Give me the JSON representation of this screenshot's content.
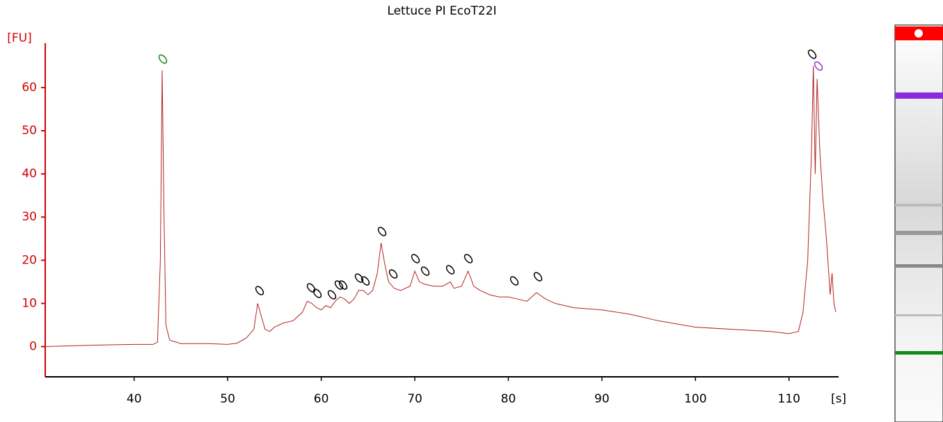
{
  "chart_data": {
    "type": "line",
    "title": "Lettuce PI EcoT22I",
    "y_label": "[FU]",
    "x_label": "[s]",
    "color": "#b22222",
    "axis_color": "#d40000",
    "xlim": [
      30.5,
      115.3
    ],
    "ylim": [
      -7,
      70.3
    ],
    "xticks": [
      40,
      50,
      60,
      70,
      80,
      90,
      100,
      110
    ],
    "yticks": [
      0,
      10,
      20,
      30,
      40,
      50,
      60
    ],
    "x": [
      30.5,
      35,
      40,
      42,
      42.5,
      42.8,
      43.0,
      43.2,
      43.4,
      43.8,
      45,
      48,
      50,
      51,
      52,
      52.8,
      53.2,
      53.6,
      54,
      54.5,
      55,
      56,
      57,
      58,
      58.5,
      59,
      59.5,
      60,
      60.5,
      61,
      61.5,
      62,
      62.5,
      63,
      63.5,
      64,
      64.5,
      65,
      65.5,
      66,
      66.4,
      66.8,
      67.2,
      67.8,
      68.5,
      69.5,
      70,
      70.5,
      71,
      72,
      73,
      73.8,
      74.2,
      75,
      75.7,
      76.3,
      77,
      78,
      79,
      80,
      81,
      82,
      83,
      84,
      85,
      87,
      90,
      93,
      96,
      100,
      104,
      108,
      110,
      111,
      111.5,
      112,
      112.4,
      112.6,
      112.8,
      113,
      113.3,
      113.6,
      114,
      114.4,
      114.6,
      114.8,
      115
    ],
    "values": [
      0,
      0.3,
      0.5,
      0.5,
      1,
      20,
      64,
      30,
      5,
      1.5,
      0.7,
      0.7,
      0.5,
      0.8,
      2,
      4,
      10,
      7,
      4,
      3.5,
      4.5,
      5.5,
      6,
      8,
      10.5,
      10,
      9,
      8.5,
      9.5,
      9,
      10.5,
      11.5,
      11,
      10,
      11,
      13,
      13,
      12,
      13,
      17,
      24,
      19,
      15,
      13.5,
      13,
      14,
      17.5,
      15,
      14.5,
      14,
      14,
      15,
      13.5,
      14,
      17.5,
      14,
      13,
      12,
      11.5,
      11.5,
      11,
      10.5,
      12.5,
      11,
      10,
      9,
      8.5,
      7.5,
      6,
      4.5,
      4,
      3.5,
      3,
      3.5,
      8,
      20,
      45,
      65,
      40,
      62,
      45,
      35,
      25,
      12,
      17,
      10,
      8
    ]
  }
}
